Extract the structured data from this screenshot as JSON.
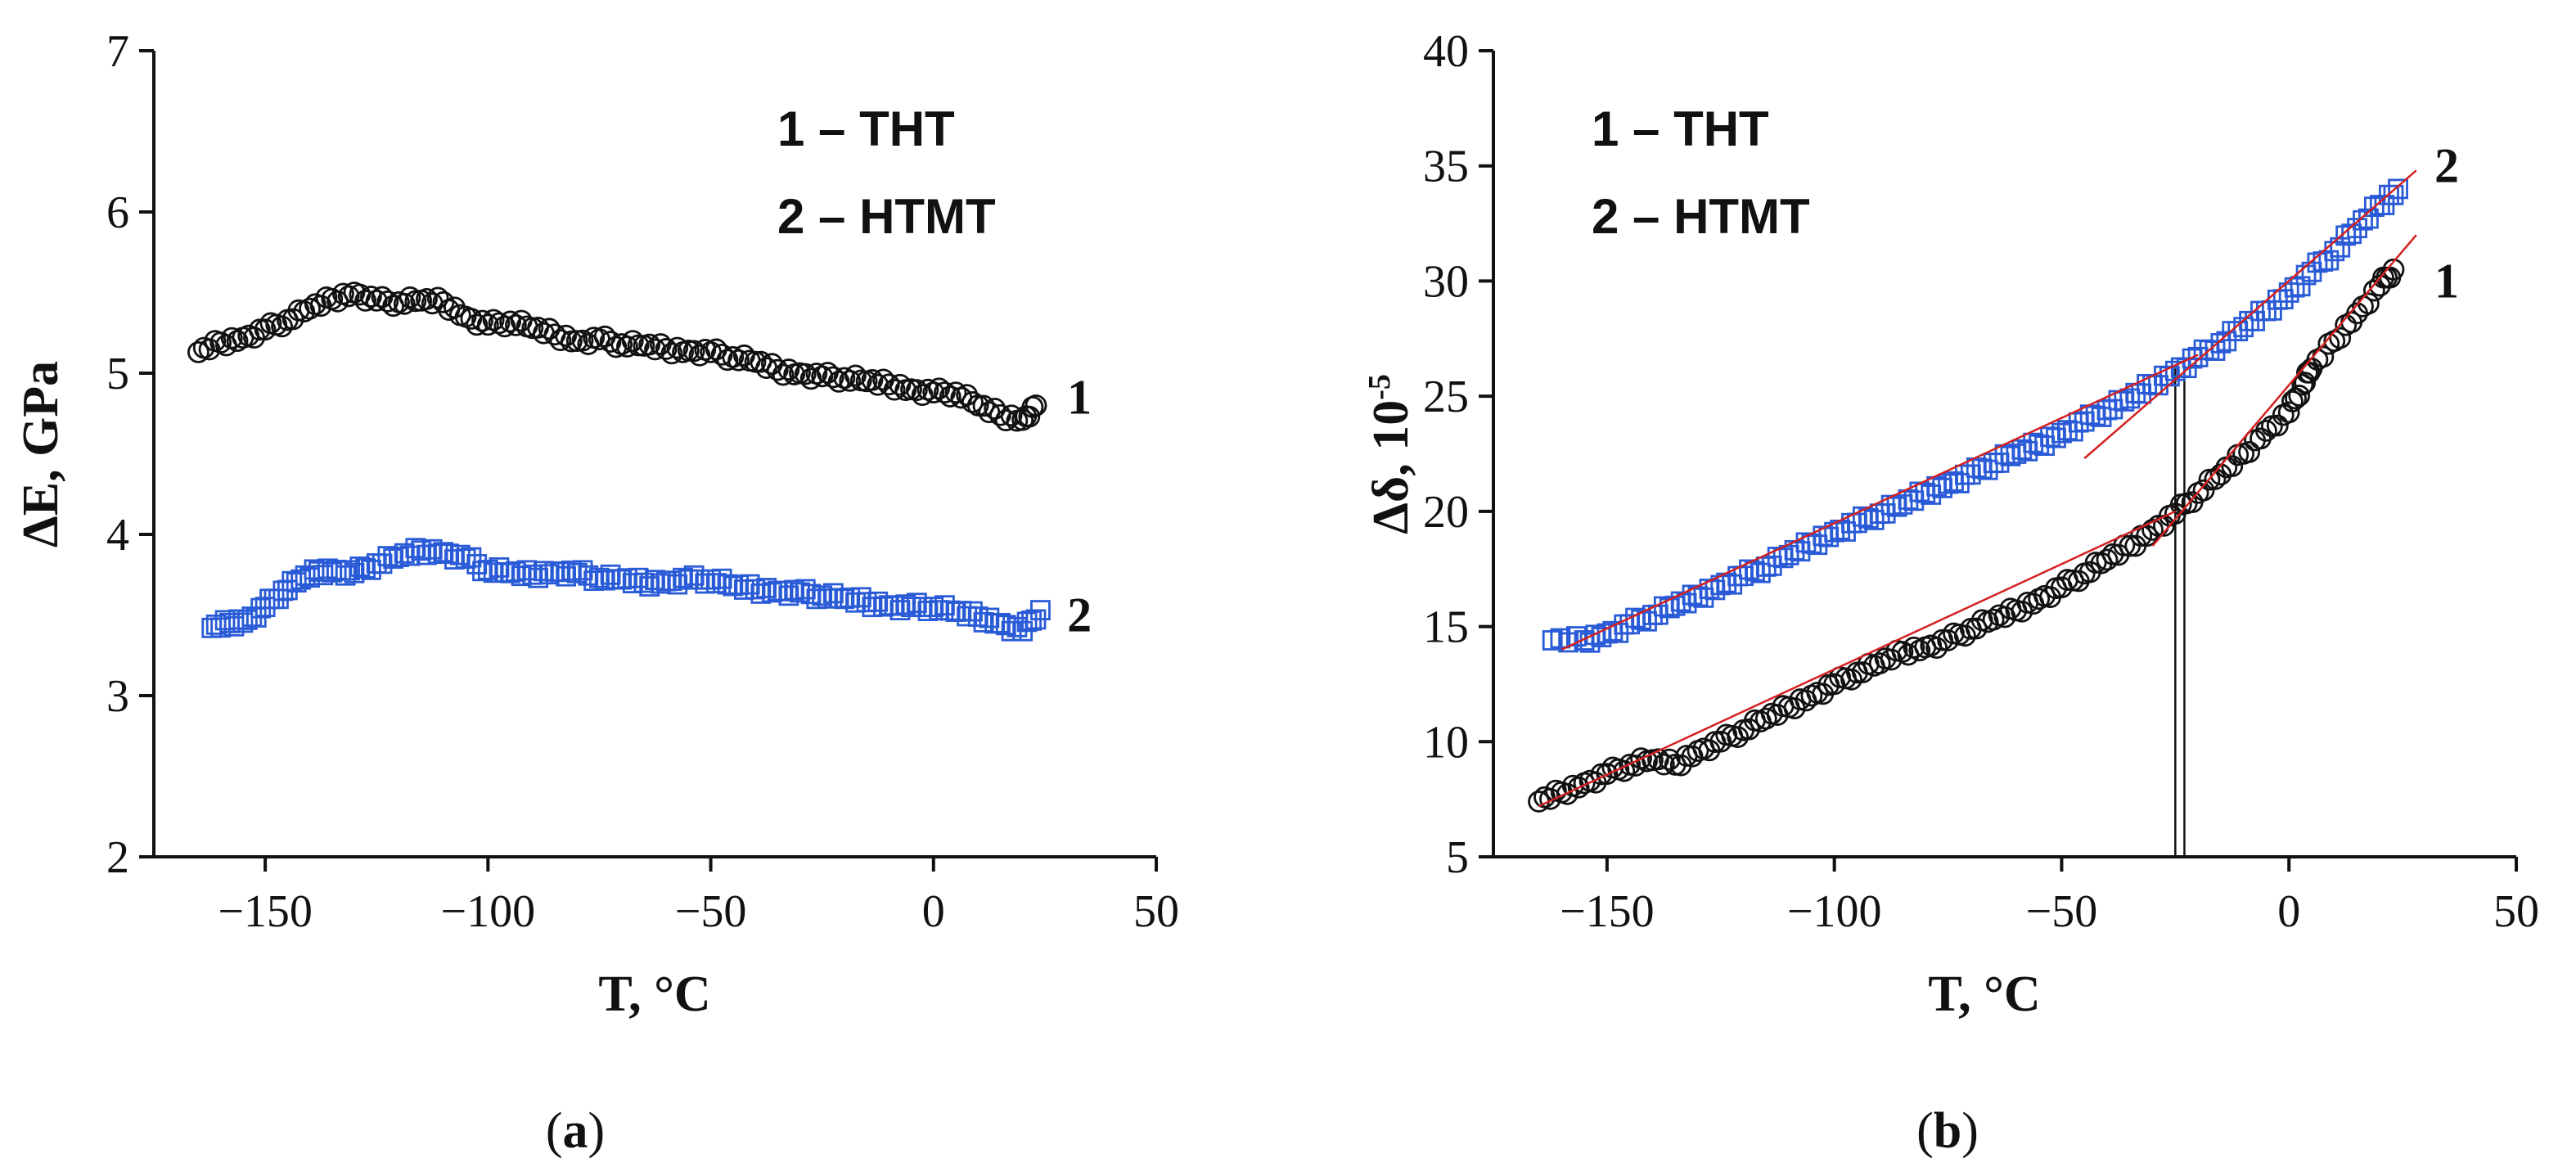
{
  "chart_data": [
    {
      "type": "scatter",
      "panel_label": {
        "open": "(",
        "letter": "a",
        "close": ")"
      },
      "xlabel": "T, °C",
      "ylabel": "ΔE, GPa",
      "xlim": [
        -175,
        50
      ],
      "ylim": [
        2,
        7
      ],
      "xticks": [
        -150,
        -100,
        -50,
        0,
        50
      ],
      "yticks": [
        2,
        3,
        4,
        5,
        6,
        7
      ],
      "xtick_labels": [
        "−150",
        "−100",
        "−50",
        "0",
        "50"
      ],
      "ytick_labels": [
        "2",
        "3",
        "4",
        "5",
        "6",
        "7"
      ],
      "legend": [
        "1 – THT",
        "2 – HTMT"
      ],
      "series": [
        {
          "name": "1",
          "label": "1",
          "marker": "circle",
          "color": "#111111",
          "label_at": [
            30,
            4.85
          ],
          "x": [
            -165,
            -160,
            -155,
            -150,
            -145,
            -140,
            -135,
            -130,
            -125,
            -120,
            -115,
            -110,
            -105,
            -100,
            -95,
            -90,
            -85,
            -80,
            -75,
            -70,
            -65,
            -60,
            -55,
            -50,
            -45,
            -40,
            -35,
            -30,
            -25,
            -20,
            -15,
            -10,
            -5,
            0,
            5,
            10,
            15,
            20,
            23
          ],
          "y": [
            5.13,
            5.19,
            5.22,
            5.27,
            5.33,
            5.4,
            5.46,
            5.5,
            5.45,
            5.44,
            5.45,
            5.44,
            5.35,
            5.3,
            5.32,
            5.28,
            5.24,
            5.2,
            5.21,
            5.18,
            5.17,
            5.15,
            5.14,
            5.13,
            5.1,
            5.07,
            5.02,
            5.0,
            4.98,
            4.97,
            4.95,
            4.93,
            4.9,
            4.88,
            4.88,
            4.8,
            4.74,
            4.71,
            4.8
          ]
        },
        {
          "name": "2",
          "label": "2",
          "marker": "square",
          "color": "#2a5bd7",
          "label_at": [
            30,
            3.5
          ],
          "x": [
            -162,
            -158,
            -154,
            -150,
            -146,
            -142,
            -138,
            -134,
            -130,
            -125,
            -120,
            -115,
            -110,
            -105,
            -100,
            -95,
            -90,
            -85,
            -80,
            -75,
            -70,
            -65,
            -60,
            -55,
            -50,
            -45,
            -40,
            -35,
            -30,
            -25,
            -20,
            -15,
            -10,
            -5,
            0,
            5,
            10,
            15,
            20,
            24
          ],
          "y": [
            3.42,
            3.45,
            3.47,
            3.55,
            3.65,
            3.72,
            3.77,
            3.78,
            3.76,
            3.82,
            3.86,
            3.9,
            3.89,
            3.85,
            3.78,
            3.76,
            3.75,
            3.77,
            3.76,
            3.73,
            3.72,
            3.7,
            3.71,
            3.72,
            3.72,
            3.68,
            3.66,
            3.65,
            3.64,
            3.62,
            3.6,
            3.58,
            3.56,
            3.55,
            3.55,
            3.52,
            3.49,
            3.45,
            3.4,
            3.53
          ]
        }
      ]
    },
    {
      "type": "scatter",
      "panel_label": {
        "open": "(",
        "letter": "b",
        "close": ")"
      },
      "xlabel": "T, °C",
      "ylabel": "Δδ, 10",
      "ylabel_exp": "-5",
      "xlim": [
        -175,
        50
      ],
      "ylim": [
        5,
        40
      ],
      "xticks": [
        -150,
        -100,
        -50,
        0,
        50
      ],
      "yticks": [
        5,
        10,
        15,
        20,
        25,
        30,
        35,
        40
      ],
      "xtick_labels": [
        "−150",
        "−100",
        "−50",
        "0",
        "50"
      ],
      "ytick_labels": [
        "5",
        "10",
        "15",
        "20",
        "25",
        "30",
        "35",
        "40"
      ],
      "legend": [
        "1 – THT",
        "2 – HTMT"
      ],
      "vertical_lines": [
        -25,
        -23
      ],
      "series": [
        {
          "name": "1",
          "label": "1",
          "marker": "circle",
          "color": "#111111",
          "label_at": [
            32,
            30.0
          ],
          "x": [
            -165,
            -160,
            -155,
            -150,
            -145,
            -140,
            -135,
            -130,
            -125,
            -120,
            -115,
            -110,
            -105,
            -100,
            -95,
            -90,
            -85,
            -80,
            -75,
            -70,
            -65,
            -60,
            -55,
            -50,
            -45,
            -40,
            -35,
            -30,
            -25,
            -20,
            -15,
            -10,
            -5,
            0,
            3,
            5,
            10,
            15,
            20,
            23
          ],
          "y": [
            7.4,
            7.8,
            8.2,
            8.6,
            9.0,
            9.2,
            9.0,
            9.6,
            10.0,
            10.5,
            11.0,
            11.5,
            12.0,
            12.5,
            13.0,
            13.4,
            13.9,
            14.1,
            14.4,
            14.9,
            15.3,
            15.7,
            16.2,
            16.7,
            17.3,
            17.9,
            18.5,
            19.2,
            19.9,
            20.8,
            21.6,
            22.5,
            23.5,
            24.3,
            25.5,
            26.2,
            27.4,
            28.6,
            29.8,
            30.5
          ]
        },
        {
          "name": "2",
          "label": "2",
          "marker": "square",
          "color": "#2a5bd7",
          "label_at": [
            32,
            35.0
          ],
          "x": [
            -162,
            -155,
            -150,
            -145,
            -140,
            -135,
            -130,
            -125,
            -120,
            -115,
            -110,
            -105,
            -100,
            -95,
            -90,
            -85,
            -80,
            -75,
            -70,
            -65,
            -60,
            -55,
            -50,
            -45,
            -40,
            -35,
            -30,
            -25,
            -20,
            -15,
            -10,
            -5,
            0,
            5,
            10,
            15,
            20,
            24
          ],
          "y": [
            14.4,
            14.4,
            14.7,
            15.1,
            15.5,
            15.9,
            16.3,
            16.8,
            17.2,
            17.6,
            18.1,
            18.6,
            19.1,
            19.5,
            19.9,
            20.3,
            20.8,
            21.2,
            21.6,
            22.1,
            22.5,
            22.9,
            23.4,
            23.9,
            24.4,
            24.9,
            25.5,
            26.1,
            26.7,
            27.3,
            28.0,
            28.7,
            29.5,
            30.4,
            31.3,
            32.3,
            33.3,
            34.0
          ]
        }
      ],
      "fit_lines": [
        {
          "color": "#d42020",
          "points": [
            [
              -165,
              7.2
            ],
            [
              -25,
              20.0
            ]
          ]
        },
        {
          "color": "#d42020",
          "points": [
            [
              -30,
              18.5
            ],
            [
              28,
              32.0
            ]
          ]
        },
        {
          "color": "#d42020",
          "points": [
            [
              -160,
              14.0
            ],
            [
              -20,
              26.8
            ]
          ]
        },
        {
          "color": "#d42020",
          "points": [
            [
              -45,
              22.3
            ],
            [
              28,
              34.8
            ]
          ]
        }
      ]
    }
  ]
}
